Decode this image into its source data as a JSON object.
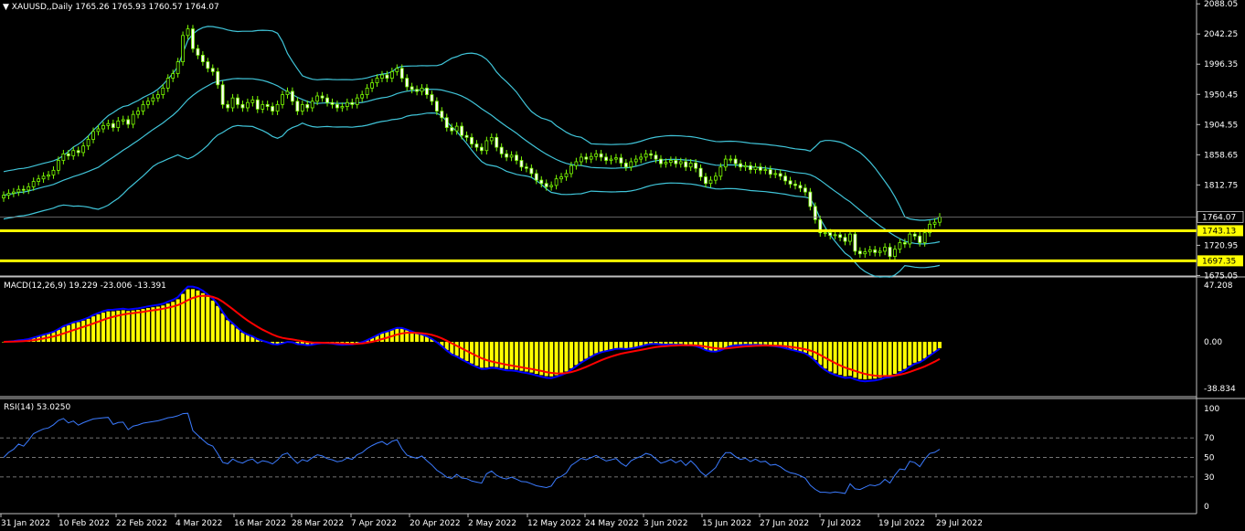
{
  "chart_data": {
    "type": "candlestick",
    "symbol_label": "XAUUSD,,Daily",
    "ohlc_header": "1765.26 1765.93 1760.57 1764.07",
    "price_axis": {
      "ticks": [
        "2088.05",
        "2042.25",
        "1996.35",
        "1950.45",
        "1904.55",
        "1858.65",
        "1812.75",
        "1720.95",
        "1675.05"
      ],
      "tick_values": [
        2088.05,
        2042.25,
        1996.35,
        1950.45,
        1904.55,
        1858.65,
        1812.75,
        1720.95,
        1675.05
      ],
      "ylim": [
        1670,
        2090
      ]
    },
    "current_price": {
      "label": "1764.07",
      "value": 1764.07,
      "color": "#ffffff"
    },
    "horizontal_levels": [
      {
        "label": "1743.13",
        "value": 1743.13,
        "color": "#ffff00"
      },
      {
        "label": "1697.35",
        "value": 1697.35,
        "color": "#ffff00"
      }
    ],
    "x_axis_labels": [
      "31 Jan 2022",
      "10 Feb 2022",
      "22 Feb 2022",
      "4 Mar 2022",
      "16 Mar 2022",
      "28 Mar 2022",
      "7 Apr 2022",
      "20 Apr 2022",
      "2 May 2022",
      "12 May 2022",
      "24 May 2022",
      "3 Jun 2022",
      "15 Jun 2022",
      "27 Jun 2022",
      "7 Jul 2022",
      "19 Jul 2022",
      "29 Jul 2022"
    ],
    "closes": [
      1797,
      1800,
      1802,
      1806,
      1805,
      1810,
      1818,
      1822,
      1826,
      1828,
      1835,
      1850,
      1860,
      1857,
      1865,
      1862,
      1872,
      1882,
      1894,
      1898,
      1903,
      1906,
      1900,
      1910,
      1912,
      1905,
      1920,
      1925,
      1935,
      1940,
      1945,
      1950,
      1960,
      1975,
      1982,
      2000,
      2040,
      2050,
      2020,
      2010,
      2000,
      1990,
      1985,
      1965,
      1935,
      1930,
      1945,
      1935,
      1930,
      1938,
      1942,
      1928,
      1935,
      1932,
      1925,
      1935,
      1950,
      1955,
      1940,
      1925,
      1935,
      1930,
      1940,
      1948,
      1945,
      1938,
      1935,
      1930,
      1932,
      1938,
      1935,
      1945,
      1950,
      1960,
      1968,
      1975,
      1980,
      1975,
      1985,
      1990,
      1975,
      1962,
      1958,
      1955,
      1960,
      1950,
      1940,
      1925,
      1915,
      1900,
      1895,
      1902,
      1888,
      1885,
      1875,
      1870,
      1865,
      1880,
      1885,
      1870,
      1860,
      1855,
      1858,
      1850,
      1840,
      1838,
      1830,
      1820,
      1815,
      1810,
      1812,
      1822,
      1825,
      1830,
      1842,
      1848,
      1855,
      1852,
      1856,
      1860,
      1855,
      1850,
      1852,
      1854,
      1846,
      1840,
      1848,
      1852,
      1855,
      1860,
      1858,
      1852,
      1845,
      1847,
      1850,
      1845,
      1848,
      1840,
      1846,
      1838,
      1825,
      1815,
      1820,
      1826,
      1840,
      1852,
      1852,
      1845,
      1840,
      1842,
      1836,
      1840,
      1835,
      1836,
      1829,
      1830,
      1826,
      1819,
      1814,
      1812,
      1808,
      1802,
      1780,
      1760,
      1740,
      1740,
      1736,
      1737,
      1733,
      1727,
      1738,
      1712,
      1708,
      1711,
      1714,
      1710,
      1712,
      1718,
      1704,
      1715,
      1725,
      1723,
      1738,
      1735,
      1725,
      1740,
      1753,
      1756,
      1764
    ],
    "macd": {
      "label": "MACD(12,26,9) 19.229 -23.006 -13.391",
      "axis_ticks": [
        "47.208",
        "0.00",
        "-38.834"
      ],
      "axis_values": [
        47.208,
        0,
        -38.834
      ]
    },
    "rsi": {
      "label": "RSI(14) 53.0250",
      "axis_ticks": [
        "100",
        "70",
        "50",
        "30",
        "0"
      ],
      "axis_values": [
        100,
        70,
        50,
        30,
        0
      ]
    },
    "colors": {
      "candle": "#7cfc00",
      "bands": "#40c4d8",
      "macd_hist": "#ffff00",
      "macd_line": "#0000ff",
      "signal_line": "#ff0000",
      "rsi_line": "#3b7bff",
      "level": "#ffff00",
      "grid": "#c0c0c0"
    }
  }
}
